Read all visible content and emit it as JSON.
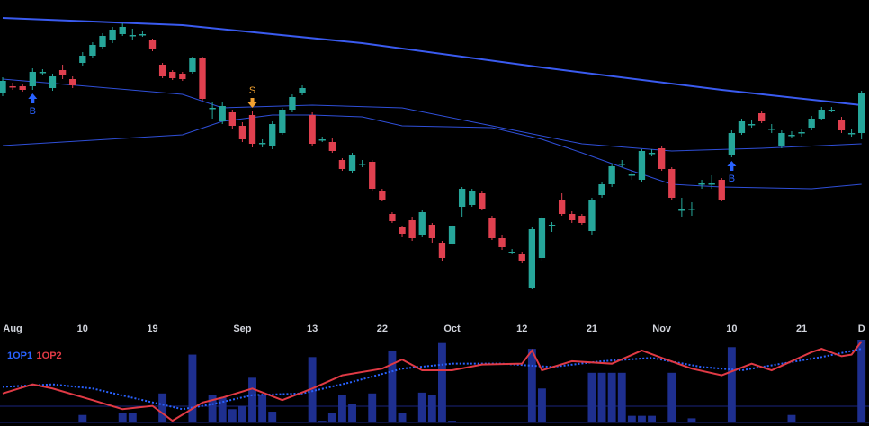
{
  "chart_data": {
    "type": "candlestick",
    "xlim": [
      -0.27,
      86.75
    ],
    "ylim": [
      0,
      350
    ],
    "xticks": [
      {
        "value": 1,
        "label": "Aug"
      },
      {
        "value": 8,
        "label": "10"
      },
      {
        "value": 15,
        "label": "19"
      },
      {
        "value": 24,
        "label": "Sep"
      },
      {
        "value": 31,
        "label": "13"
      },
      {
        "value": 38,
        "label": "22"
      },
      {
        "value": 45,
        "label": "Oct"
      },
      {
        "value": 52,
        "label": "12"
      },
      {
        "value": 59,
        "label": "21"
      },
      {
        "value": 66,
        "label": "Nov"
      },
      {
        "value": 73,
        "label": "10"
      },
      {
        "value": 80,
        "label": "21"
      },
      {
        "value": 86,
        "label": "D"
      }
    ],
    "candles": {
      "up_color": "#26a69a",
      "down_color": "#e0404f",
      "open": [
        247,
        254,
        254,
        254,
        270,
        252,
        272,
        262,
        280,
        288,
        298,
        305,
        312,
        310,
        312,
        305,
        278,
        270,
        268,
        270,
        285,
        230,
        215,
        225,
        210,
        222,
        190,
        187,
        202,
        228,
        247,
        222,
        195,
        192,
        172,
        160,
        168,
        170,
        138,
        112,
        97,
        105,
        88,
        100,
        80,
        78,
        120,
        122,
        135,
        107,
        85,
        70,
        67,
        30,
        63,
        100,
        128,
        112,
        110,
        93,
        133,
        145,
        168,
        155,
        150,
        180,
        185,
        162,
        117,
        117,
        145,
        145,
        150,
        178,
        202,
        212,
        224,
        207,
        187,
        200,
        202,
        208,
        218,
        228,
        217,
        202,
        202
      ],
      "close": [
        260,
        253,
        250,
        270,
        270,
        265,
        266,
        255,
        288,
        300,
        310,
        317,
        320,
        311,
        312,
        295,
        265,
        263,
        262,
        285,
        240,
        230,
        232,
        210,
        195,
        190,
        191,
        212,
        228,
        242,
        252,
        190,
        195,
        182,
        162,
        178,
        168,
        140,
        128,
        104,
        90,
        85,
        114,
        85,
        63,
        98,
        140,
        138,
        118,
        85,
        75,
        70,
        60,
        95,
        107,
        100,
        112,
        105,
        102,
        128,
        145,
        165,
        168,
        156,
        182,
        180,
        162,
        130,
        117,
        118,
        146,
        146,
        128,
        202,
        215,
        212,
        215,
        207,
        202,
        200,
        203,
        218,
        228,
        228,
        205,
        202,
        247
      ],
      "high": [
        264,
        258,
        256,
        274,
        273,
        268,
        278,
        265,
        292,
        303,
        313,
        320,
        324,
        318,
        315,
        307,
        280,
        272,
        270,
        287,
        287,
        236,
        236,
        228,
        214,
        226,
        195,
        215,
        230,
        245,
        255,
        225,
        198,
        196,
        174,
        180,
        172,
        172,
        140,
        114,
        99,
        108,
        116,
        102,
        82,
        100,
        142,
        140,
        137,
        110,
        88,
        73,
        70,
        97,
        110,
        103,
        135,
        115,
        112,
        130,
        148,
        168,
        172,
        160,
        184,
        184,
        188,
        164,
        130,
        125,
        150,
        155,
        152,
        205,
        218,
        216,
        226,
        212,
        205,
        204,
        206,
        221,
        231,
        231,
        220,
        206,
        249
      ],
      "low": [
        243,
        250,
        248,
        250,
        267,
        249,
        262,
        252,
        277,
        285,
        295,
        302,
        310,
        305,
        309,
        293,
        263,
        261,
        260,
        268,
        238,
        218,
        212,
        207,
        192,
        186,
        186,
        184,
        200,
        225,
        244,
        187,
        192,
        180,
        160,
        158,
        164,
        138,
        126,
        102,
        86,
        82,
        86,
        80,
        60,
        76,
        108,
        120,
        116,
        83,
        72,
        67,
        57,
        28,
        60,
        92,
        110,
        102,
        100,
        88,
        130,
        142,
        164,
        150,
        148,
        176,
        160,
        128,
        108,
        110,
        140,
        140,
        126,
        175,
        200,
        208,
        213,
        202,
        185,
        196,
        198,
        205,
        216,
        225,
        202,
        198,
        195
      ]
    },
    "overlays": [
      {
        "color": "#3a5bf0",
        "width": 2,
        "x": [
          0,
          18,
          36,
          54,
          72,
          86
        ],
        "values": [
          330,
          322,
          302,
          275,
          250,
          233
        ]
      },
      {
        "color": "#2f4fd8",
        "width": 1,
        "x": [
          0,
          18,
          22,
          31,
          40,
          49,
          58,
          67,
          76,
          86
        ],
        "values": [
          262,
          245,
          230,
          233,
          230,
          210,
          190,
          182,
          185,
          190
        ]
      },
      {
        "color": "#2f4fd8",
        "width": 1,
        "x": [
          0,
          18,
          22,
          27,
          31,
          36,
          40,
          49,
          54,
          58,
          63,
          67,
          72,
          81,
          86
        ],
        "values": [
          188,
          200,
          215,
          222,
          222,
          220,
          210,
          208,
          195,
          180,
          160,
          145,
          142,
          140,
          145
        ]
      }
    ],
    "signals": {
      "labels": [
        "B",
        "S",
        "B"
      ],
      "x": [
        3,
        25,
        73
      ],
      "colors": [
        "#2962ff",
        "#f0a030",
        "#2962ff"
      ],
      "directions": [
        "up",
        "down",
        "up"
      ]
    },
    "indicator": {
      "ylim": [
        0,
        100
      ],
      "bars": {
        "color": "#1e2f8f",
        "values": [
          0,
          0,
          0,
          0,
          0,
          0,
          0,
          0,
          9,
          0,
          0,
          0,
          11,
          11,
          0,
          0,
          35,
          0,
          0,
          82,
          0,
          33,
          30,
          16,
          20,
          54,
          33,
          13,
          0,
          0,
          0,
          79,
          2,
          11,
          33,
          22,
          0,
          35,
          0,
          87,
          11,
          0,
          36,
          33,
          96,
          2,
          0,
          0,
          0,
          0,
          0,
          0,
          0,
          89,
          41,
          0,
          0,
          0,
          0,
          60,
          60,
          60,
          60,
          8,
          8,
          8,
          0,
          60,
          0,
          5,
          0,
          0,
          0,
          91,
          0,
          0,
          0,
          0,
          0,
          9,
          0,
          0,
          0,
          0,
          0,
          0,
          100
        ]
      },
      "series": [
        {
          "name": "1OP1",
          "color": "#2962ff",
          "dash": true,
          "x": [
            0,
            5,
            9,
            14,
            18,
            21,
            25,
            30,
            35,
            40,
            45,
            50,
            55,
            60,
            65,
            70,
            74,
            78,
            82,
            86
          ],
          "values": [
            43,
            46,
            41,
            27,
            16,
            22,
            33,
            35,
            49,
            65,
            71,
            71,
            67,
            74,
            78,
            67,
            63,
            71,
            79,
            89
          ]
        },
        {
          "name": "1OP2",
          "color": "#e03a45",
          "dash": false,
          "x": [
            0,
            3,
            5,
            9,
            12,
            15,
            17,
            20,
            22,
            25,
            28,
            31,
            34,
            38,
            40,
            42,
            45,
            48,
            52,
            53,
            54,
            57,
            61,
            64,
            66,
            69,
            72,
            75,
            77,
            81,
            82,
            84,
            85,
            86
          ],
          "values": [
            35,
            46,
            41,
            27,
            16,
            20,
            2,
            24,
            30,
            41,
            27,
            41,
            57,
            65,
            76,
            63,
            63,
            70,
            71,
            87,
            63,
            74,
            71,
            87,
            78,
            65,
            57,
            71,
            63,
            85,
            89,
            80,
            82,
            98
          ]
        }
      ]
    }
  }
}
